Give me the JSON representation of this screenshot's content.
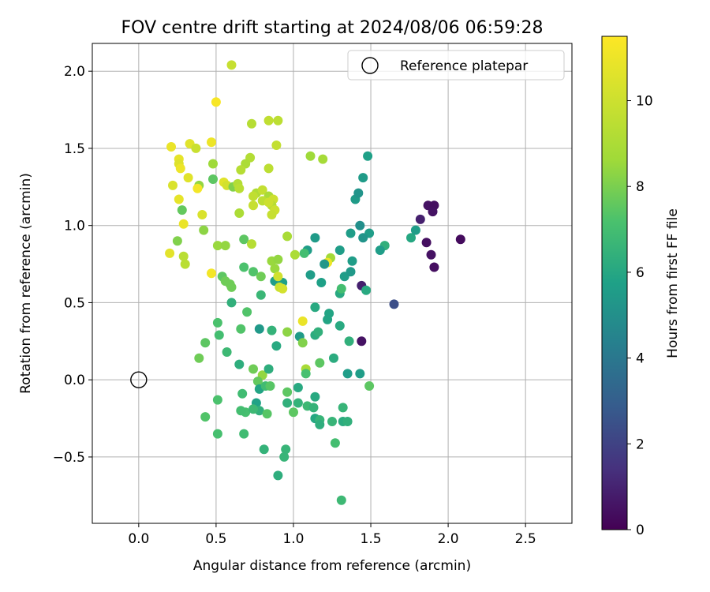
{
  "chart_data": {
    "type": "scatter",
    "title": "FOV centre drift starting at 2024/08/06 06:59:28",
    "xlabel": "Angular distance from reference (arcmin)",
    "ylabel": "Rotation from reference (arcmin)",
    "xlim": [
      -0.3,
      2.8
    ],
    "ylim": [
      -0.93,
      2.18
    ],
    "x_ticks": [
      0.0,
      0.5,
      1.0,
      1.5,
      2.0,
      2.5
    ],
    "y_ticks": [
      -0.5,
      0.0,
      0.5,
      1.0,
      1.5,
      2.0
    ],
    "x_tick_labels": [
      "0.0",
      "0.5",
      "1.0",
      "1.5",
      "2.0",
      "2.5"
    ],
    "y_tick_labels": [
      "−0.5",
      "0.0",
      "0.5",
      "1.0",
      "1.5",
      "2.0"
    ],
    "grid": true,
    "legend": {
      "position": "top-right",
      "entries": [
        {
          "label": "Reference platepar",
          "marker": "open-circle"
        }
      ]
    },
    "reference_point": {
      "x": 0.0,
      "y": 0.0
    },
    "colorbar": {
      "label": "Hours from first FF file",
      "colormap": "viridis",
      "range": [
        0,
        11.5
      ],
      "ticks": [
        0,
        2,
        4,
        6,
        8,
        10
      ],
      "tick_labels": [
        "0",
        "2",
        "4",
        "6",
        "8",
        "10"
      ]
    },
    "points": [
      [
        0.6,
        2.04,
        9.8
      ],
      [
        0.5,
        1.8,
        11.3
      ],
      [
        0.73,
        1.66,
        9.3
      ],
      [
        0.84,
        1.68,
        9.6
      ],
      [
        0.9,
        1.68,
        9.5
      ],
      [
        0.21,
        1.51,
        10.9
      ],
      [
        0.33,
        1.53,
        10.6
      ],
      [
        0.47,
        1.54,
        11.0
      ],
      [
        0.37,
        1.5,
        9.9
      ],
      [
        0.72,
        1.44,
        9.2
      ],
      [
        0.89,
        1.52,
        9.7
      ],
      [
        0.84,
        1.37,
        9.5
      ],
      [
        1.11,
        1.45,
        8.6
      ],
      [
        1.19,
        1.43,
        8.8
      ],
      [
        1.48,
        1.45,
        5.7
      ],
      [
        0.26,
        1.43,
        10.8
      ],
      [
        0.26,
        1.4,
        10.5
      ],
      [
        0.27,
        1.37,
        11.0
      ],
      [
        0.48,
        1.4,
        8.6
      ],
      [
        0.69,
        1.4,
        9.0
      ],
      [
        0.66,
        1.36,
        9.3
      ],
      [
        0.32,
        1.31,
        10.6
      ],
      [
        0.22,
        1.26,
        10.4
      ],
      [
        0.39,
        1.26,
        8.4
      ],
      [
        0.38,
        1.24,
        11.2
      ],
      [
        0.48,
        1.3,
        7.5
      ],
      [
        0.55,
        1.28,
        10.6
      ],
      [
        0.57,
        1.26,
        10.2
      ],
      [
        0.61,
        1.25,
        8.1
      ],
      [
        0.64,
        1.27,
        9.2
      ],
      [
        0.65,
        1.24,
        9.4
      ],
      [
        0.76,
        1.21,
        9.1
      ],
      [
        0.8,
        1.23,
        9.7
      ],
      [
        0.84,
        1.19,
        8.9
      ],
      [
        0.74,
        1.19,
        9.6
      ],
      [
        0.87,
        1.17,
        10.0
      ],
      [
        0.86,
        1.13,
        9.3
      ],
      [
        0.74,
        1.13,
        9.8
      ],
      [
        0.8,
        1.16,
        9.5
      ],
      [
        0.84,
        1.15,
        10.0
      ],
      [
        0.88,
        1.1,
        10.0
      ],
      [
        0.86,
        1.07,
        9.8
      ],
      [
        0.26,
        1.17,
        10.8
      ],
      [
        0.28,
        1.1,
        7.6
      ],
      [
        0.41,
        1.07,
        10.4
      ],
      [
        0.65,
        1.08,
        9.0
      ],
      [
        0.29,
        1.01,
        10.9
      ],
      [
        0.42,
        0.97,
        8.3
      ],
      [
        0.25,
        0.9,
        8.1
      ],
      [
        0.51,
        0.87,
        8.5
      ],
      [
        0.56,
        0.87,
        8.4
      ],
      [
        0.68,
        0.91,
        7.5
      ],
      [
        0.73,
        0.88,
        9.3
      ],
      [
        0.96,
        0.93,
        8.9
      ],
      [
        1.4,
        1.17,
        5.5
      ],
      [
        1.42,
        1.21,
        5.2
      ],
      [
        1.45,
        1.31,
        5.5
      ],
      [
        1.49,
        0.95,
        5.6
      ],
      [
        1.45,
        0.92,
        5.2
      ],
      [
        1.43,
        1.0,
        5.0
      ],
      [
        1.37,
        0.95,
        5.6
      ],
      [
        1.14,
        0.92,
        5.5
      ],
      [
        1.09,
        0.84,
        5.6
      ],
      [
        1.07,
        0.82,
        7.0
      ],
      [
        1.01,
        0.81,
        9.0
      ],
      [
        1.24,
        0.79,
        8.7
      ],
      [
        1.22,
        0.76,
        11.0
      ],
      [
        1.2,
        0.75,
        5.3
      ],
      [
        1.59,
        0.87,
        6.4
      ],
      [
        1.56,
        0.84,
        5.6
      ],
      [
        1.76,
        0.92,
        6.0
      ],
      [
        1.79,
        0.97,
        5.6
      ],
      [
        1.82,
        1.04,
        0.9
      ],
      [
        1.87,
        1.13,
        0.5
      ],
      [
        1.91,
        1.13,
        0.4
      ],
      [
        1.9,
        1.09,
        0.5
      ],
      [
        1.86,
        0.89,
        0.4
      ],
      [
        1.89,
        0.81,
        0.5
      ],
      [
        1.91,
        0.73,
        0.4
      ],
      [
        2.08,
        0.91,
        0.3
      ],
      [
        1.65,
        0.49,
        2.4
      ],
      [
        0.2,
        0.82,
        10.7
      ],
      [
        0.29,
        0.8,
        9.4
      ],
      [
        0.3,
        0.75,
        9.4
      ],
      [
        0.47,
        0.69,
        11.2
      ],
      [
        0.54,
        0.67,
        7.5
      ],
      [
        0.56,
        0.64,
        7.8
      ],
      [
        0.59,
        0.62,
        7.8
      ],
      [
        0.6,
        0.6,
        7.8
      ],
      [
        0.68,
        0.73,
        7.2
      ],
      [
        0.74,
        0.7,
        7.3
      ],
      [
        0.79,
        0.67,
        7.8
      ],
      [
        0.86,
        0.77,
        8.5
      ],
      [
        0.9,
        0.78,
        8.4
      ],
      [
        0.88,
        0.72,
        8.5
      ],
      [
        0.88,
        0.64,
        5.6
      ],
      [
        0.93,
        0.63,
        5.7
      ],
      [
        0.9,
        0.67,
        10.1
      ],
      [
        0.91,
        0.6,
        9.9
      ],
      [
        0.93,
        0.59,
        10.2
      ],
      [
        1.11,
        0.68,
        5.6
      ],
      [
        1.18,
        0.63,
        5.7
      ],
      [
        1.3,
        0.84,
        5.6
      ],
      [
        1.33,
        0.67,
        5.6
      ],
      [
        1.37,
        0.7,
        5.4
      ],
      [
        1.38,
        0.77,
        5.6
      ],
      [
        1.3,
        0.56,
        6.1
      ],
      [
        1.31,
        0.59,
        7.0
      ],
      [
        1.44,
        0.61,
        0.9
      ],
      [
        1.47,
        0.58,
        6.1
      ],
      [
        0.79,
        0.55,
        6.7
      ],
      [
        0.6,
        0.5,
        6.4
      ],
      [
        1.14,
        0.47,
        6.1
      ],
      [
        1.22,
        0.39,
        5.9
      ],
      [
        1.23,
        0.43,
        5.9
      ],
      [
        1.06,
        0.38,
        10.9
      ],
      [
        1.3,
        0.35,
        6.1
      ],
      [
        0.51,
        0.37,
        7.2
      ],
      [
        0.7,
        0.44,
        7.3
      ],
      [
        0.52,
        0.29,
        7.0
      ],
      [
        0.66,
        0.33,
        7.3
      ],
      [
        0.78,
        0.33,
        5.4
      ],
      [
        0.86,
        0.32,
        6.5
      ],
      [
        0.96,
        0.31,
        8.3
      ],
      [
        1.04,
        0.28,
        5.5
      ],
      [
        1.14,
        0.29,
        6.2
      ],
      [
        1.16,
        0.31,
        6.4
      ],
      [
        1.06,
        0.24,
        8.1
      ],
      [
        1.36,
        0.25,
        6.4
      ],
      [
        1.44,
        0.25,
        0.5
      ],
      [
        0.43,
        0.24,
        7.5
      ],
      [
        0.39,
        0.14,
        7.8
      ],
      [
        0.57,
        0.18,
        6.8
      ],
      [
        0.89,
        0.22,
        6.1
      ],
      [
        1.08,
        0.07,
        8.9
      ],
      [
        1.08,
        0.04,
        7.1
      ],
      [
        1.17,
        0.11,
        7.5
      ],
      [
        1.26,
        0.14,
        6.2
      ],
      [
        0.65,
        0.1,
        6.3
      ],
      [
        0.74,
        0.07,
        7.8
      ],
      [
        0.8,
        0.03,
        8.4
      ],
      [
        0.77,
        -0.01,
        7.6
      ],
      [
        0.84,
        0.07,
        6.3
      ],
      [
        1.35,
        0.04,
        5.6
      ],
      [
        1.43,
        0.04,
        5.6
      ],
      [
        0.78,
        -0.06,
        5.9
      ],
      [
        0.82,
        -0.04,
        6.9
      ],
      [
        0.85,
        -0.04,
        7.4
      ],
      [
        0.96,
        -0.08,
        7.5
      ],
      [
        1.03,
        -0.05,
        6.1
      ],
      [
        1.14,
        -0.11,
        6.1
      ],
      [
        1.49,
        -0.04,
        7.5
      ],
      [
        0.67,
        -0.09,
        6.9
      ],
      [
        0.51,
        -0.13,
        7.2
      ],
      [
        0.76,
        -0.15,
        5.8
      ],
      [
        0.78,
        -0.2,
        6.4
      ],
      [
        0.69,
        -0.21,
        7.1
      ],
      [
        0.66,
        -0.2,
        7.0
      ],
      [
        0.74,
        -0.19,
        6.8
      ],
      [
        0.83,
        -0.22,
        7.4
      ],
      [
        0.96,
        -0.15,
        6.4
      ],
      [
        1.0,
        -0.21,
        7.5
      ],
      [
        1.03,
        -0.15,
        6.5
      ],
      [
        1.09,
        -0.17,
        6.8
      ],
      [
        1.13,
        -0.18,
        6.5
      ],
      [
        1.14,
        -0.25,
        6.0
      ],
      [
        1.17,
        -0.26,
        6.6
      ],
      [
        1.17,
        -0.29,
        6.3
      ],
      [
        1.25,
        -0.27,
        6.6
      ],
      [
        1.32,
        -0.18,
        6.6
      ],
      [
        1.32,
        -0.27,
        6.2
      ],
      [
        1.35,
        -0.27,
        6.4
      ],
      [
        0.43,
        -0.24,
        7.3
      ],
      [
        0.51,
        -0.35,
        7.1
      ],
      [
        0.68,
        -0.35,
        6.9
      ],
      [
        1.27,
        -0.41,
        7.0
      ],
      [
        0.81,
        -0.45,
        6.5
      ],
      [
        0.95,
        -0.45,
        6.6
      ],
      [
        0.94,
        -0.5,
        6.6
      ],
      [
        0.9,
        -0.62,
        6.3
      ],
      [
        1.31,
        -0.78,
        6.8
      ]
    ]
  }
}
